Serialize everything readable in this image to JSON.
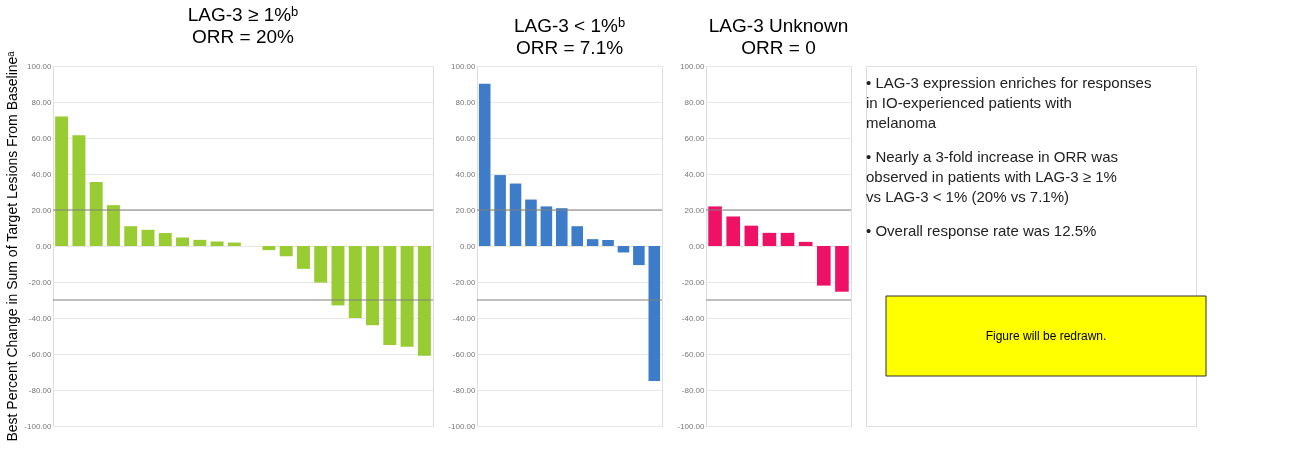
{
  "chart_data": [
    {
      "type": "bar",
      "title": "LAG-3 ≥ 1%ᵇ",
      "subtitle": "ORR = 20%",
      "ylabel": "Best Percent Change in Sum of Target Lesions From Baselineᵃ",
      "categories": [
        null,
        null,
        null,
        null,
        null,
        null,
        null,
        null,
        null,
        null,
        null,
        null,
        null,
        null,
        null,
        null,
        null,
        null,
        null,
        null,
        null,
        null
      ],
      "series": [
        {
          "color": "#99cc33",
          "values": [
            72,
            61.5,
            35.6,
            22.7,
            11,
            9,
            7.2,
            4.7,
            3.4,
            2.5,
            1.9,
            0,
            -2.3,
            -5.7,
            -12.7,
            -20.3,
            -33,
            -40,
            -44,
            -55,
            -56,
            -61
          ]
        }
      ],
      "ylim": [
        -100,
        100
      ],
      "yticks": [
        {
          "value": 100,
          "label": "100.00"
        },
        {
          "value": 80,
          "label": "80.00"
        },
        {
          "value": 60,
          "label": "60.00"
        },
        {
          "value": 40,
          "label": "40.00"
        },
        {
          "value": 20,
          "label": "20.00"
        },
        {
          "value": 0,
          "label": "0.00"
        },
        {
          "value": -20,
          "label": "-20.00"
        },
        {
          "value": -40,
          "label": "-40.00"
        },
        {
          "value": -60,
          "label": "-60.00"
        },
        {
          "value": -80,
          "label": "-80.00"
        },
        {
          "value": -100,
          "label": "-100.00"
        }
      ],
      "ref_lines": [
        {
          "axis": "y",
          "value": 20,
          "color": "#808080"
        },
        {
          "axis": "y",
          "value": -30,
          "color": "#808080"
        }
      ],
      "grid": "y",
      "tick_labels": "y"
    },
    {
      "type": "bar",
      "title": "LAG-3 < 1%ᵇ",
      "subtitle": "ORR = 7.1%",
      "categories": [
        null,
        null,
        null,
        null,
        null,
        null,
        null,
        null,
        null,
        null,
        null,
        null
      ],
      "series": [
        {
          "color": "#3d7cc9",
          "values": [
            90.2,
            39.4,
            34.7,
            25.8,
            22,
            21,
            11,
            3.8,
            3.4,
            -3.6,
            -10.6,
            -75
          ]
        }
      ],
      "ylim": [
        -100,
        100
      ],
      "yticks": [
        {
          "value": 100,
          "label": "100.00"
        },
        {
          "value": 80,
          "label": "80.00"
        },
        {
          "value": 60,
          "label": "60.00"
        },
        {
          "value": 40,
          "label": "40.00"
        },
        {
          "value": 20,
          "label": "20.00"
        },
        {
          "value": 0,
          "label": "0.00"
        },
        {
          "value": -20,
          "label": "-20.00"
        },
        {
          "value": -40,
          "label": "-40.00"
        },
        {
          "value": -60,
          "label": "-60.00"
        },
        {
          "value": -80,
          "label": "-80.00"
        },
        {
          "value": -100,
          "label": "-100.00"
        }
      ],
      "ref_lines": [
        {
          "axis": "y",
          "value": 20,
          "color": "#808080"
        },
        {
          "axis": "y",
          "value": -30,
          "color": "#808080"
        }
      ],
      "grid": "y",
      "tick_labels": "y"
    },
    {
      "type": "bar",
      "title": "LAG-3 Unknown",
      "subtitle": "ORR = 0",
      "categories": [
        null,
        null,
        null,
        null,
        null,
        null,
        null,
        null
      ],
      "series": [
        {
          "color": "#ee1166",
          "values": [
            22,
            16.4,
            11.3,
            7.3,
            7.3,
            2.3,
            -22,
            -25.4
          ]
        }
      ],
      "ylim": [
        -100,
        100
      ],
      "yticks": [
        {
          "value": 100,
          "label": "100.00"
        },
        {
          "value": 80,
          "label": "80.00"
        },
        {
          "value": 60,
          "label": "60.00"
        },
        {
          "value": 40,
          "label": "40.00"
        },
        {
          "value": 20,
          "label": "20.00"
        },
        {
          "value": 0,
          "label": "0.00"
        },
        {
          "value": -20,
          "label": "-20.00"
        },
        {
          "value": -40,
          "label": "-40.00"
        },
        {
          "value": -60,
          "label": "-60.00"
        },
        {
          "value": -80,
          "label": "-80.00"
        },
        {
          "value": -100,
          "label": "-100.00"
        }
      ],
      "ref_lines": [
        {
          "axis": "y",
          "value": 20,
          "color": "#808080"
        },
        {
          "axis": "y",
          "value": -30,
          "color": "#808080"
        }
      ],
      "grid": "y",
      "tick_labels": "y"
    },
    {
      "type": "other",
      "annotations": [
        "• LAG-3 expression enriches for responses in IO-experienced patients with melanoma",
        "• Nearly a 3-fold increase in ORR was observed in patients with LAG-3 ≥ 1% vs LAG-3 < 1% (20% vs 7.1%)",
        "• Overall response rate was 12.5%",
        "Figure will be redrawn."
      ]
    }
  ]
}
